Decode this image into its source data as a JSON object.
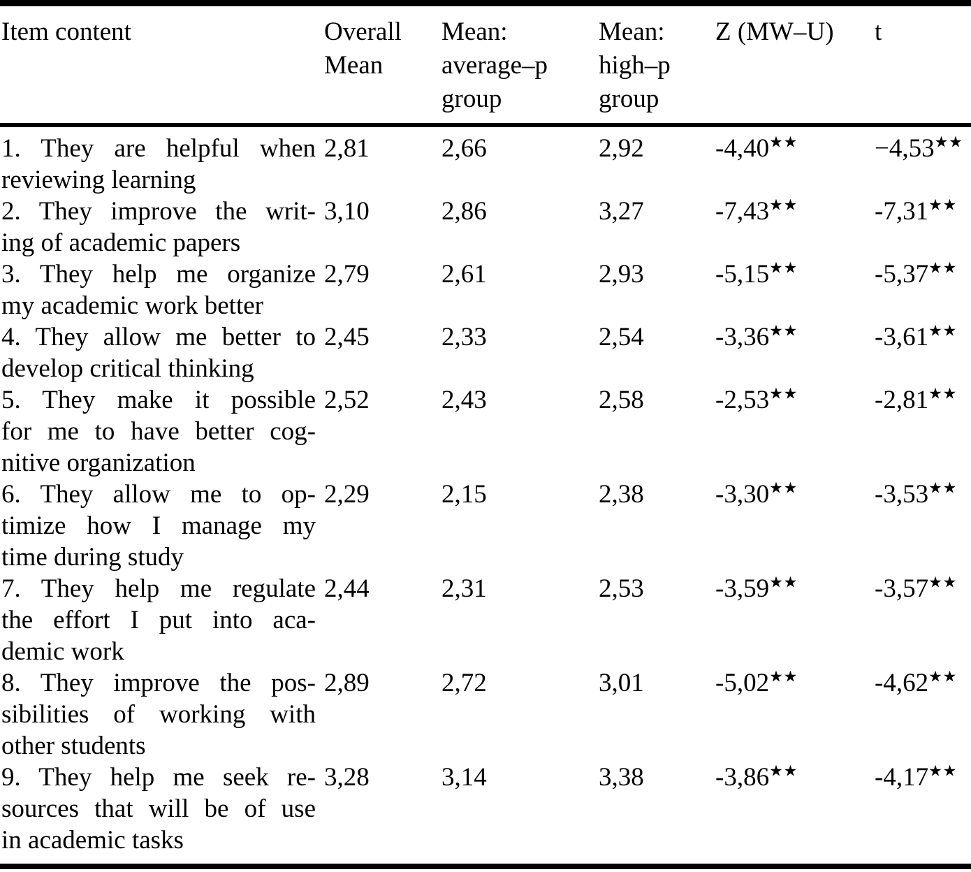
{
  "table": {
    "header": {
      "item": "Item content",
      "overall": "Overall\nMean",
      "avg": "Mean:\naverage–p\ngroup",
      "high": "Mean:\nhigh–p\ngroup",
      "z": "Z (MW–U)",
      "t": "t"
    },
    "rows": [
      {
        "item": "1. They are helpful when\nreviewing learning",
        "overall": "2,81",
        "avg": "2,66",
        "high": "2,92",
        "z": "-4,40",
        "z_sig": "★★",
        "t": "−4,53",
        "t_sig": "★★"
      },
      {
        "item": "2. They improve the writ-\ning of academic papers",
        "overall": "3,10",
        "avg": "2,86",
        "high": "3,27",
        "z": "-7,43",
        "z_sig": "★★",
        "t": "-7,31",
        "t_sig": "★★"
      },
      {
        "item": "3. They help me organize\nmy academic work better",
        "overall": "2,79",
        "avg": "2,61",
        "high": "2,93",
        "z": "-5,15",
        "z_sig": "★★",
        "t": "-5,37",
        "t_sig": "★★"
      },
      {
        "item": "4. They allow me better to\ndevelop critical thinking",
        "overall": "2,45",
        "avg": "2,33",
        "high": "2,54",
        "z": "-3,36",
        "z_sig": "★★",
        "t": "-3,61",
        "t_sig": "★★"
      },
      {
        "item": "5. They make it possible\nfor me to have better cog-\nnitive organization",
        "overall": "2,52",
        "avg": "2,43",
        "high": "2,58",
        "z": "-2,53",
        "z_sig": "★★",
        "t": "-2,81",
        "t_sig": "★★"
      },
      {
        "item": "6. They allow me to op-\ntimize how I manage my\ntime during study",
        "overall": "2,29",
        "avg": "2,15",
        "high": "2,38",
        "z": "-3,30",
        "z_sig": "★★",
        "t": "-3,53",
        "t_sig": "★★"
      },
      {
        "item": "7. They help me regulate\nthe effort I put into aca-\ndemic work",
        "overall": "2,44",
        "avg": "2,31",
        "high": "2,53",
        "z": "-3,59",
        "z_sig": "★★",
        "t": "-3,57",
        "t_sig": "★★"
      },
      {
        "item": "8. They improve the pos-\nsibilities of working with\nother students",
        "overall": "2,89",
        "avg": "2,72",
        "high": "3,01",
        "z": "-5,02",
        "z_sig": "★★",
        "t": "-4,62",
        "t_sig": "★★"
      },
      {
        "item": "9. They help me seek re-\nsources that will be of use\nin academic tasks",
        "overall": "3,28",
        "avg": "3,14",
        "high": "3,38",
        "z": "-3,86",
        "z_sig": "★★",
        "t": "-4,17",
        "t_sig": "★★"
      }
    ]
  }
}
